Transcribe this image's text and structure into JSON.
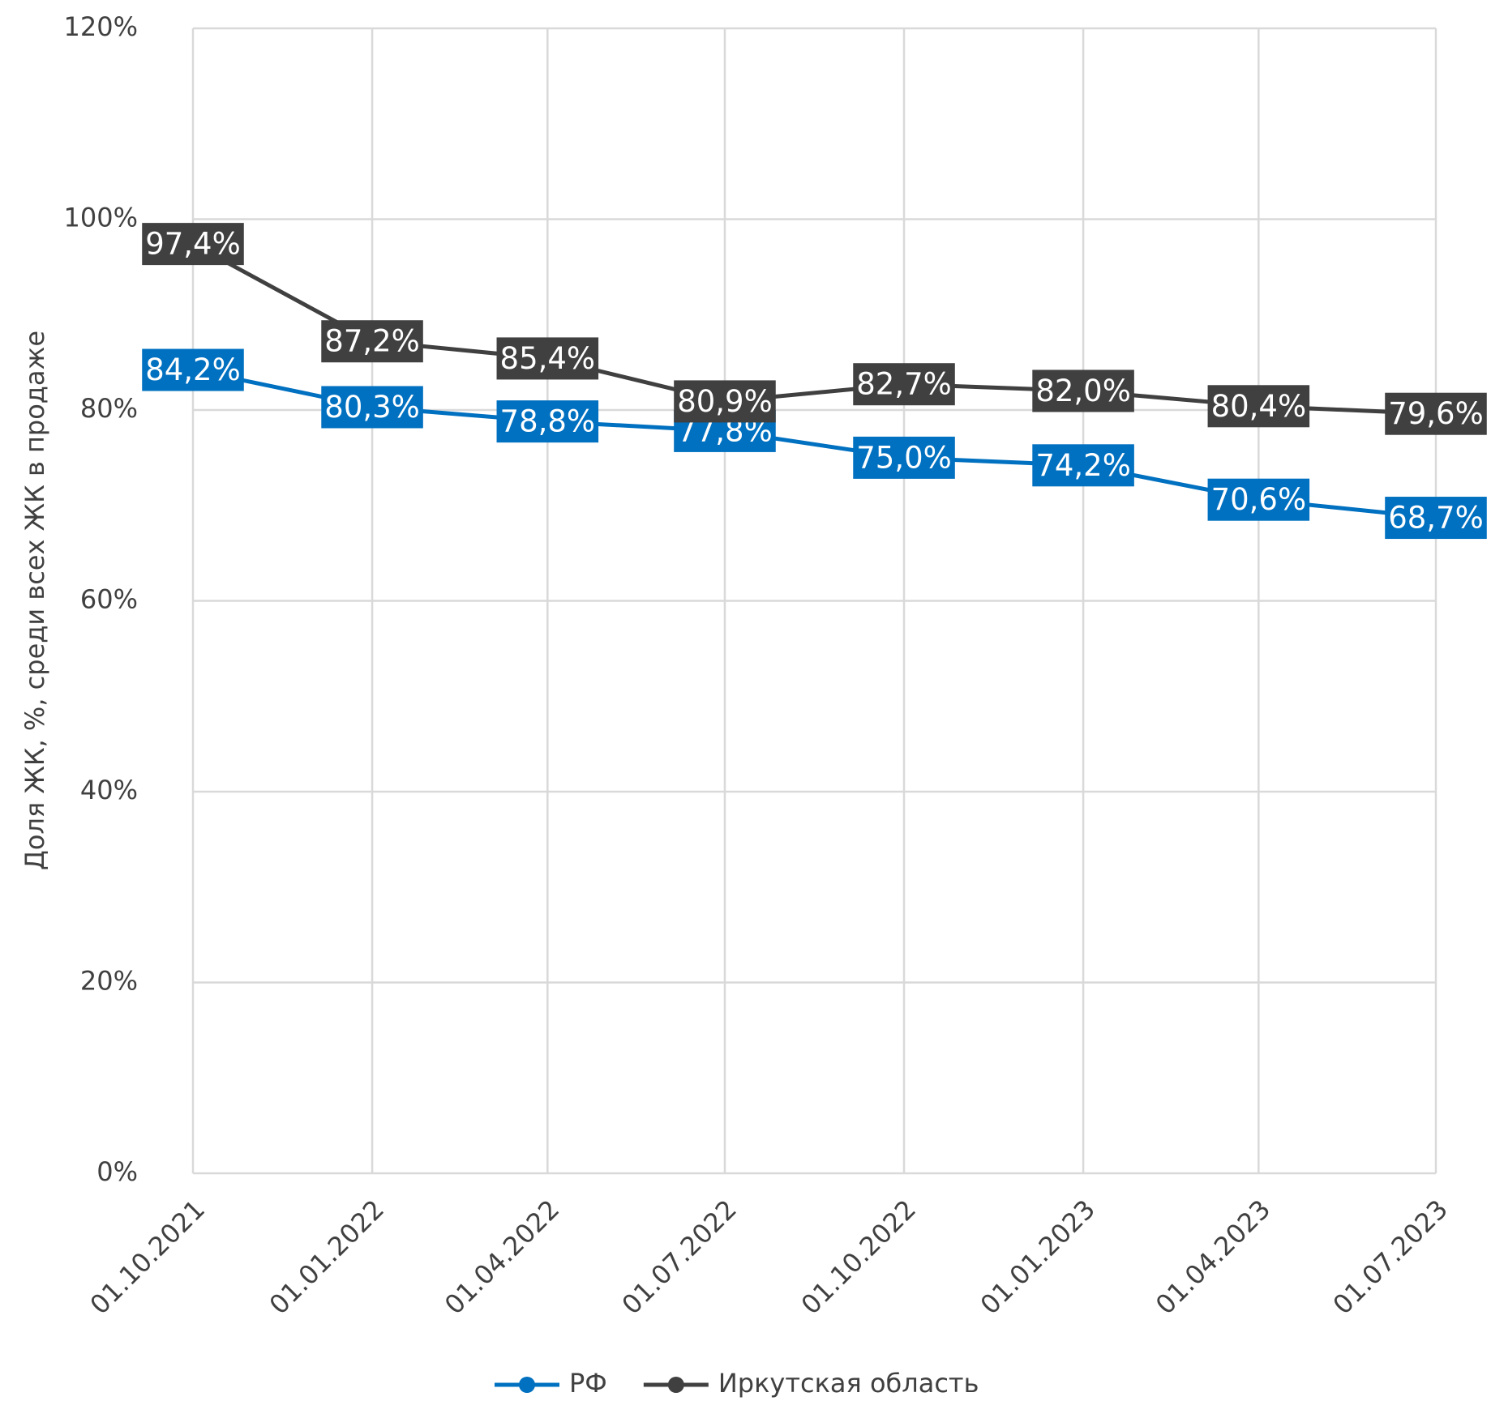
{
  "chart_data": {
    "type": "line",
    "y_label": "Доля ЖК, %, среди всех ЖК в продаже",
    "x": [
      "01.10.2021",
      "01.01.2022",
      "01.04.2022",
      "01.07.2022",
      "01.10.2022",
      "01.01.2023",
      "01.04.2023",
      "01.07.2023"
    ],
    "series": [
      {
        "name": "РФ",
        "color": "#0070c0",
        "values": [
          84.2,
          80.3,
          78.8,
          77.8,
          75.0,
          74.2,
          70.6,
          68.7
        ],
        "value_labels": [
          "84,2%",
          "80,3%",
          "78,8%",
          "77,8%",
          "75,0%",
          "74,2%",
          "70,6%",
          "68,7%"
        ]
      },
      {
        "name": "Иркутская область",
        "color": "#404040",
        "values": [
          97.4,
          87.2,
          85.4,
          80.9,
          82.7,
          82.0,
          80.4,
          79.6
        ],
        "value_labels": [
          "97,4%",
          "87,2%",
          "85,4%",
          "80,9%",
          "82,7%",
          "82,0%",
          "80,4%",
          "79,6%"
        ]
      }
    ],
    "ylim": [
      0,
      120
    ],
    "yticks": [
      {
        "value": 0,
        "label": "0%"
      },
      {
        "value": 20,
        "label": "20%"
      },
      {
        "value": 40,
        "label": "40%"
      },
      {
        "value": 60,
        "label": "60%"
      },
      {
        "value": 80,
        "label": "80%"
      },
      {
        "value": 100,
        "label": "100%"
      },
      {
        "value": 120,
        "label": "120%"
      }
    ],
    "grid": true,
    "legend": "bottom"
  }
}
